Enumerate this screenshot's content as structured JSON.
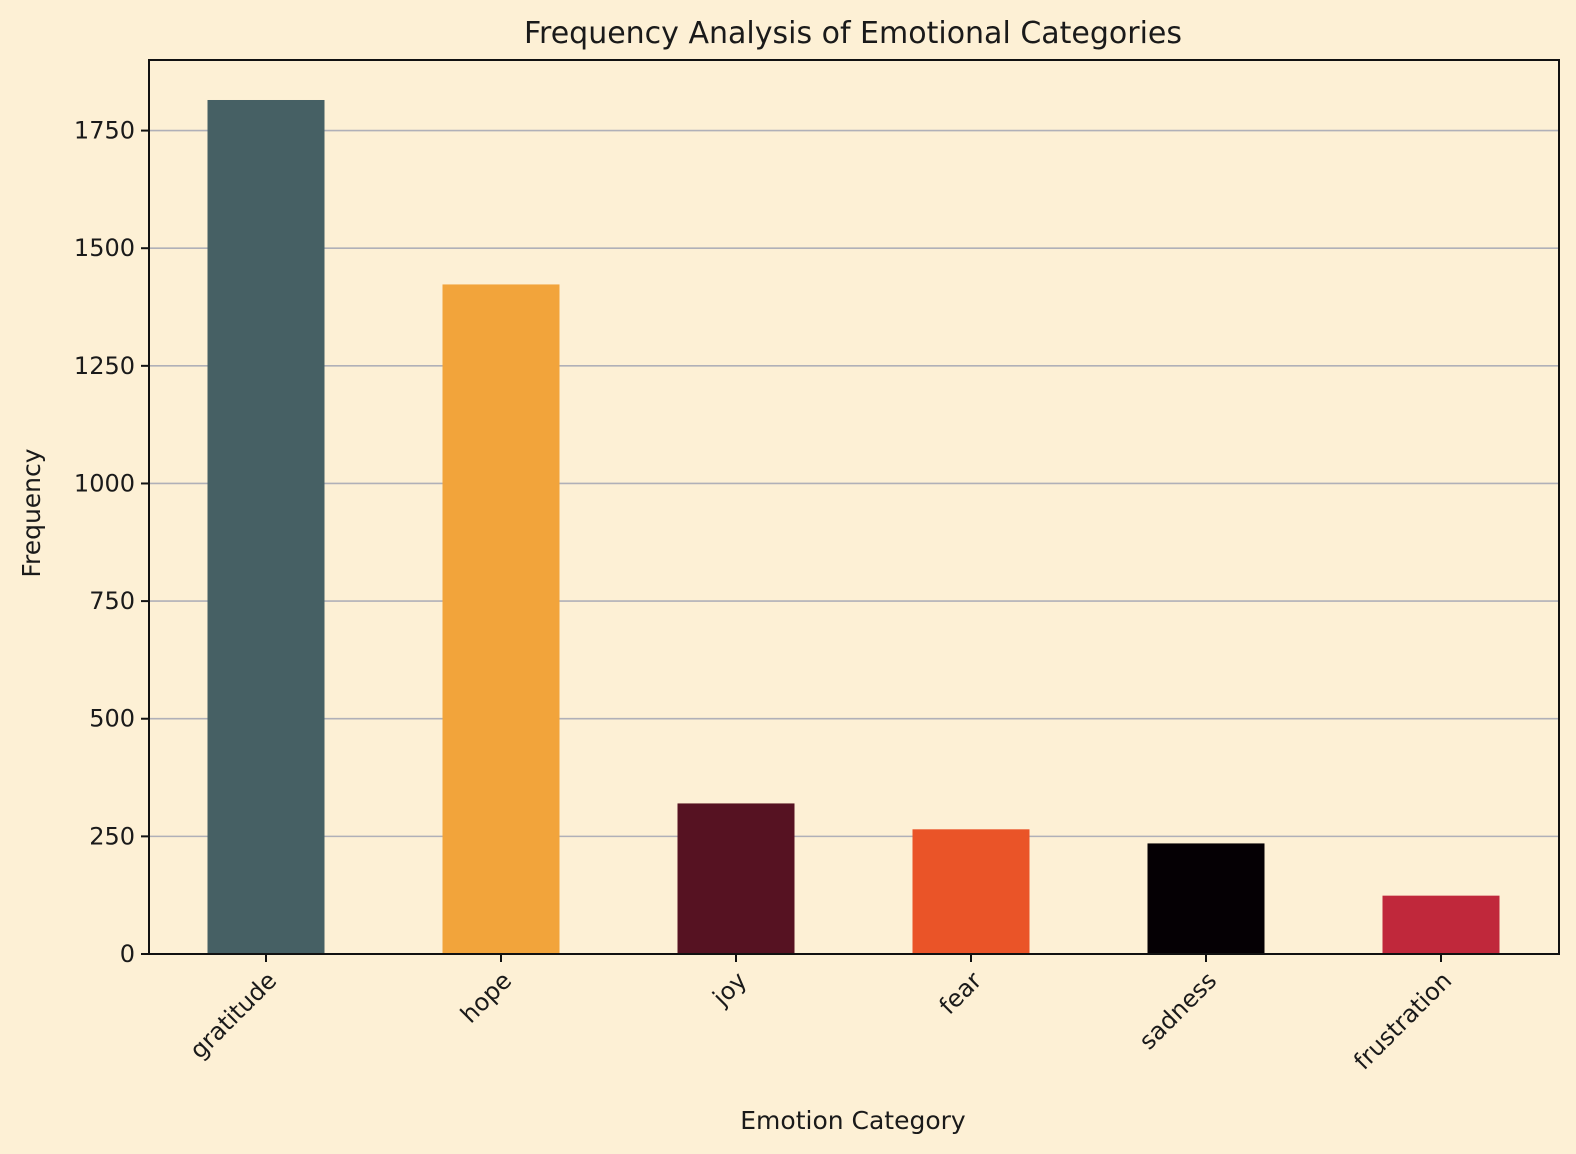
{
  "chart_data": {
    "type": "bar",
    "title": "Frequency Analysis of Emotional Categories",
    "xlabel": "Emotion Category",
    "ylabel": "Frequency",
    "categories": [
      "gratitude",
      "hope",
      "joy",
      "fear",
      "sadness",
      "frustration"
    ],
    "values": [
      1815,
      1423,
      320,
      265,
      235,
      124
    ],
    "colors": [
      "#466064",
      "#f2a43b",
      "#561222",
      "#ea5428",
      "#050004",
      "#c0283b"
    ],
    "ylim": [
      0,
      1900
    ],
    "yticks": [
      0,
      250,
      500,
      750,
      1000,
      1250,
      1500,
      1750
    ],
    "grid": "y-major",
    "background": "#fdf0d5"
  }
}
